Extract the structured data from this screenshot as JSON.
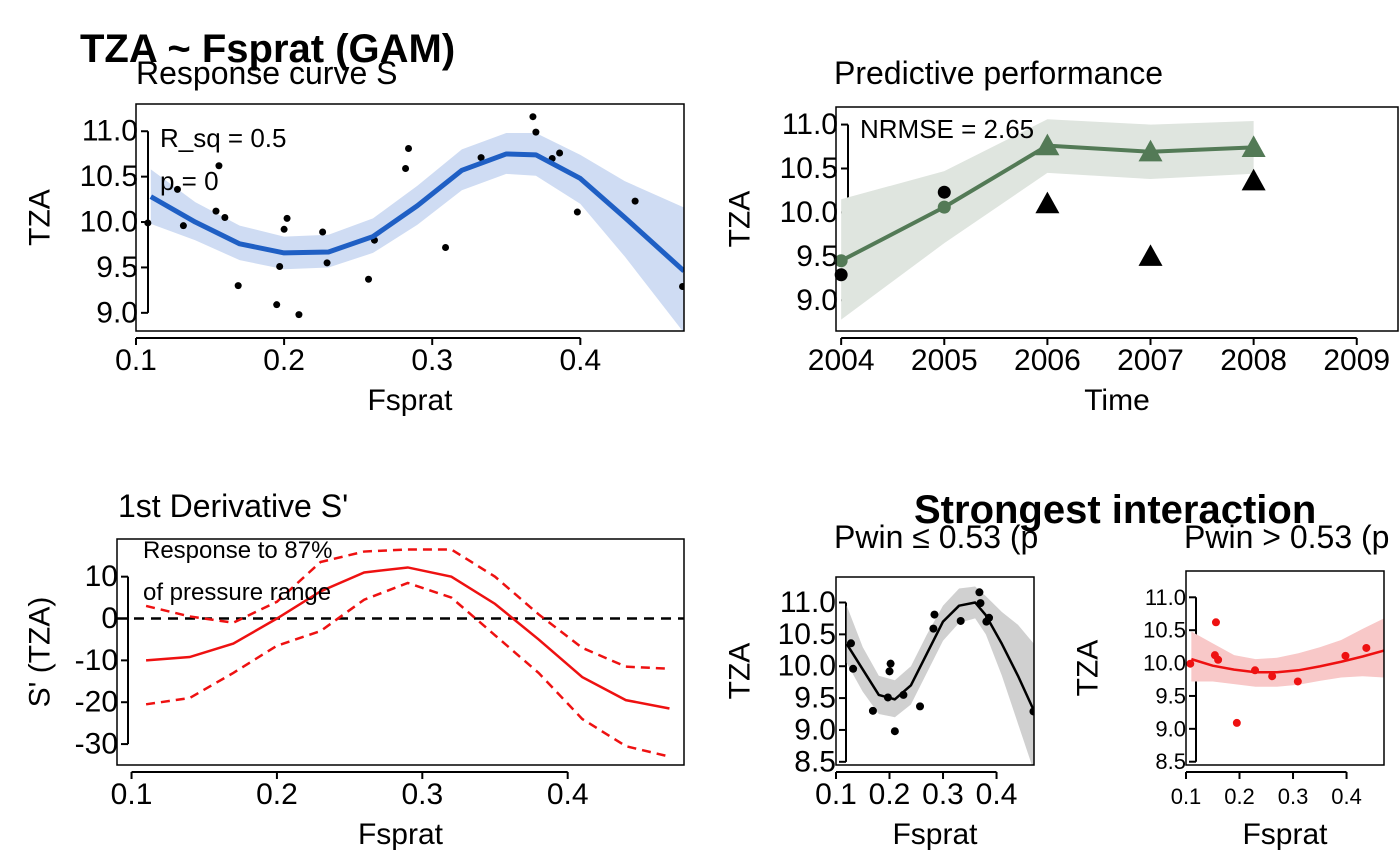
{
  "main_title": "TZA ~ Fsprat (GAM)",
  "lower_right_title": "Strongest interaction",
  "chart_data": [
    {
      "id": "response",
      "type": "scatter",
      "title": "Response curve S",
      "xlabel": "Fsprat",
      "ylabel": "TZA",
      "xlim": [
        0.1,
        0.47
      ],
      "ylim": [
        8.8,
        11.3
      ],
      "xticks": [
        0.1,
        0.2,
        0.3,
        0.4
      ],
      "xtick_labels": [
        "0.1",
        "0.2",
        "0.3",
        "0.4"
      ],
      "yticks": [
        9.0,
        9.5,
        10.0,
        10.5,
        11.0
      ],
      "ytick_labels": [
        "9.0",
        "9.5",
        "10.0",
        "10.5",
        "11.0"
      ],
      "annotations": [
        "R_sq = 0.5",
        "p = 0"
      ],
      "colors": {
        "line": "#1f5fc4",
        "band": "#cfdcf3",
        "points": "#000000"
      },
      "points": [
        {
          "x": 0.108,
          "y": 9.99
        },
        {
          "x": 0.128,
          "y": 10.36
        },
        {
          "x": 0.132,
          "y": 9.96
        },
        {
          "x": 0.154,
          "y": 10.12
        },
        {
          "x": 0.156,
          "y": 10.62
        },
        {
          "x": 0.16,
          "y": 10.05
        },
        {
          "x": 0.169,
          "y": 9.3
        },
        {
          "x": 0.195,
          "y": 9.09
        },
        {
          "x": 0.197,
          "y": 9.51
        },
        {
          "x": 0.2,
          "y": 9.92
        },
        {
          "x": 0.202,
          "y": 10.04
        },
        {
          "x": 0.21,
          "y": 8.98
        },
        {
          "x": 0.226,
          "y": 9.89
        },
        {
          "x": 0.229,
          "y": 9.55
        },
        {
          "x": 0.257,
          "y": 9.37
        },
        {
          "x": 0.261,
          "y": 9.8
        },
        {
          "x": 0.282,
          "y": 10.59
        },
        {
          "x": 0.284,
          "y": 10.81
        },
        {
          "x": 0.309,
          "y": 9.72
        },
        {
          "x": 0.333,
          "y": 10.71
        },
        {
          "x": 0.368,
          "y": 11.16
        },
        {
          "x": 0.37,
          "y": 10.99
        },
        {
          "x": 0.381,
          "y": 10.7
        },
        {
          "x": 0.386,
          "y": 10.76
        },
        {
          "x": 0.398,
          "y": 10.11
        },
        {
          "x": 0.437,
          "y": 10.23
        },
        {
          "x": 0.469,
          "y": 9.29
        }
      ],
      "fit": {
        "x": [
          0.11,
          0.14,
          0.17,
          0.2,
          0.23,
          0.26,
          0.29,
          0.32,
          0.35,
          0.37,
          0.4,
          0.43,
          0.47
        ],
        "y": [
          10.28,
          10.0,
          9.76,
          9.66,
          9.67,
          9.84,
          10.18,
          10.57,
          10.75,
          10.74,
          10.48,
          10.05,
          9.46
        ],
        "lower": [
          9.98,
          9.8,
          9.58,
          9.48,
          9.5,
          9.66,
          9.97,
          10.35,
          10.53,
          10.51,
          10.2,
          9.62,
          8.78
        ],
        "upper": [
          10.58,
          10.22,
          9.96,
          9.84,
          9.86,
          10.04,
          10.4,
          10.8,
          10.98,
          10.98,
          10.74,
          10.45,
          10.16
        ]
      }
    },
    {
      "id": "predictive",
      "type": "line",
      "title": "Predictive performance",
      "xlabel": "Time",
      "ylabel": "TZA",
      "xlim": [
        2003.95,
        2009.4
      ],
      "ylim": [
        8.65,
        11.2
      ],
      "xticks": [
        2004,
        2005,
        2006,
        2007,
        2008,
        2009
      ],
      "xtick_labels": [
        "2004",
        "2005",
        "2006",
        "2007",
        "2008",
        "2009"
      ],
      "yticks": [
        9.0,
        9.5,
        10.0,
        10.5,
        11.0
      ],
      "ytick_labels": [
        "9.0",
        "9.5",
        "10.0",
        "10.5",
        "11.0"
      ],
      "annotations": [
        "NRMSE = 2.65"
      ],
      "colors": {
        "line": "#537a56",
        "band": "#dfe5df",
        "observed": "#000000"
      },
      "fit": {
        "x": [
          2004,
          2005,
          2006,
          2007,
          2008
        ],
        "y": [
          9.45,
          10.06,
          10.76,
          10.69,
          10.74
        ],
        "lower": [
          8.78,
          9.65,
          10.45,
          10.38,
          10.44
        ],
        "upper": [
          10.15,
          10.47,
          11.06,
          11.0,
          11.04
        ],
        "markers": [
          "circle",
          "circle",
          "triangle",
          "triangle",
          "triangle"
        ]
      },
      "observed": [
        {
          "x": 2004,
          "y": 9.29,
          "marker": "circle"
        },
        {
          "x": 2005,
          "y": 10.23,
          "marker": "circle"
        },
        {
          "x": 2006,
          "y": 10.1,
          "marker": "triangle"
        },
        {
          "x": 2007,
          "y": 9.5,
          "marker": "triangle"
        },
        {
          "x": 2008,
          "y": 10.36,
          "marker": "triangle"
        }
      ]
    },
    {
      "id": "derivative",
      "type": "line",
      "title": "1st Derivative S'",
      "xlabel": "Fsprat",
      "ylabel": "S' (TZA)",
      "xlim": [
        0.09,
        0.48
      ],
      "ylim": [
        -35,
        19
      ],
      "xticks": [
        0.1,
        0.2,
        0.3,
        0.4
      ],
      "xtick_labels": [
        "0.1",
        "0.2",
        "0.3",
        "0.4"
      ],
      "yticks": [
        -30,
        -20,
        -10,
        0,
        10
      ],
      "ytick_labels": [
        "-30",
        "-20",
        "-10",
        "0",
        "10"
      ],
      "annotations": [
        "Response to 87%",
        "of pressure range"
      ],
      "colors": {
        "line": "#ee1111",
        "zero": "#000000"
      },
      "x": [
        0.11,
        0.14,
        0.17,
        0.2,
        0.23,
        0.26,
        0.29,
        0.32,
        0.35,
        0.38,
        0.41,
        0.44,
        0.47
      ],
      "estimate": [
        -10.0,
        -9.2,
        -6.0,
        0.0,
        6.5,
        11.0,
        12.2,
        10.0,
        3.5,
        -5.0,
        -14.0,
        -19.5,
        -21.5
      ],
      "lower": [
        -20.5,
        -19.0,
        -13.0,
        -6.5,
        -3.0,
        4.5,
        8.5,
        5.0,
        -4.0,
        -13.0,
        -24.0,
        -30.5,
        -33.0
      ],
      "upper": [
        3.0,
        0.5,
        -1.0,
        4.0,
        13.5,
        16.0,
        16.5,
        16.5,
        10.0,
        1.0,
        -7.0,
        -11.5,
        -12.0
      ]
    },
    {
      "id": "interaction_low",
      "type": "scatter",
      "title": "Pwin ≤ 0.53 (p",
      "xlabel": "Fsprat",
      "ylabel": "TZA",
      "xlim": [
        0.1,
        0.47
      ],
      "ylim": [
        8.45,
        11.4
      ],
      "xticks": [
        0.1,
        0.2,
        0.3,
        0.4
      ],
      "xtick_labels": [
        "0.1",
        "0.2",
        "0.3",
        "0.4"
      ],
      "yticks": [
        8.5,
        9.0,
        9.5,
        10.0,
        10.5,
        11.0
      ],
      "ytick_labels": [
        "8.5",
        "9.0",
        "9.5",
        "10.0",
        "10.5",
        "11.0"
      ],
      "colors": {
        "line": "#000000",
        "band": "#d0d0d0",
        "points": "#000000"
      },
      "points": [
        {
          "x": 0.128,
          "y": 10.36
        },
        {
          "x": 0.132,
          "y": 9.96
        },
        {
          "x": 0.169,
          "y": 9.3
        },
        {
          "x": 0.197,
          "y": 9.51
        },
        {
          "x": 0.2,
          "y": 9.92
        },
        {
          "x": 0.202,
          "y": 10.04
        },
        {
          "x": 0.21,
          "y": 8.98
        },
        {
          "x": 0.226,
          "y": 9.55
        },
        {
          "x": 0.257,
          "y": 9.37
        },
        {
          "x": 0.282,
          "y": 10.59
        },
        {
          "x": 0.284,
          "y": 10.81
        },
        {
          "x": 0.333,
          "y": 10.71
        },
        {
          "x": 0.368,
          "y": 11.16
        },
        {
          "x": 0.37,
          "y": 10.99
        },
        {
          "x": 0.381,
          "y": 10.7
        },
        {
          "x": 0.386,
          "y": 10.76
        },
        {
          "x": 0.469,
          "y": 9.29
        }
      ],
      "fit": {
        "x": [
          0.12,
          0.15,
          0.18,
          0.21,
          0.24,
          0.27,
          0.3,
          0.33,
          0.36,
          0.38,
          0.41,
          0.44,
          0.47
        ],
        "y": [
          10.35,
          9.95,
          9.55,
          9.48,
          9.7,
          10.2,
          10.7,
          10.95,
          11.0,
          10.8,
          10.35,
          9.85,
          9.3
        ],
        "lower": [
          10.05,
          9.6,
          9.25,
          9.2,
          9.4,
          9.9,
          10.4,
          10.68,
          10.75,
          10.5,
          9.85,
          9.1,
          8.35
        ],
        "upper": [
          10.95,
          10.3,
          9.85,
          9.78,
          10.0,
          10.5,
          10.95,
          11.22,
          11.25,
          11.1,
          10.85,
          10.65,
          10.35
        ]
      }
    },
    {
      "id": "interaction_high",
      "type": "scatter",
      "title": "Pwin > 0.53 (p",
      "xlabel": "Fsprat",
      "ylabel": "TZA",
      "xlim": [
        0.1,
        0.47
      ],
      "ylim": [
        8.45,
        11.4
      ],
      "xticks": [
        0.1,
        0.2,
        0.3,
        0.4
      ],
      "xtick_labels": [
        "0.1",
        "0.2",
        "0.3",
        "0.4"
      ],
      "yticks": [
        8.5,
        9.0,
        9.5,
        10.0,
        10.5,
        11.0
      ],
      "ytick_labels": [
        "8.5",
        "9.0",
        "9.5",
        "10.0",
        "10.5",
        "11.0"
      ],
      "colors": {
        "line": "#ee1111",
        "band": "#f8c8c8",
        "points": "#ee1111"
      },
      "points": [
        {
          "x": 0.108,
          "y": 9.99
        },
        {
          "x": 0.154,
          "y": 10.12
        },
        {
          "x": 0.156,
          "y": 10.62
        },
        {
          "x": 0.16,
          "y": 10.05
        },
        {
          "x": 0.195,
          "y": 9.09
        },
        {
          "x": 0.229,
          "y": 9.89
        },
        {
          "x": 0.261,
          "y": 9.8
        },
        {
          "x": 0.309,
          "y": 9.72
        },
        {
          "x": 0.398,
          "y": 10.11
        },
        {
          "x": 0.437,
          "y": 10.23
        }
      ],
      "fit": {
        "x": [
          0.11,
          0.15,
          0.19,
          0.23,
          0.27,
          0.31,
          0.35,
          0.39,
          0.43,
          0.47
        ],
        "y": [
          10.06,
          9.96,
          9.9,
          9.86,
          9.86,
          9.89,
          9.95,
          10.02,
          10.1,
          10.19
        ],
        "lower": [
          9.72,
          9.72,
          9.68,
          9.64,
          9.64,
          9.67,
          9.73,
          9.78,
          9.8,
          9.78
        ],
        "upper": [
          10.48,
          10.3,
          10.12,
          10.06,
          10.08,
          10.15,
          10.24,
          10.35,
          10.52,
          10.68
        ]
      }
    }
  ]
}
